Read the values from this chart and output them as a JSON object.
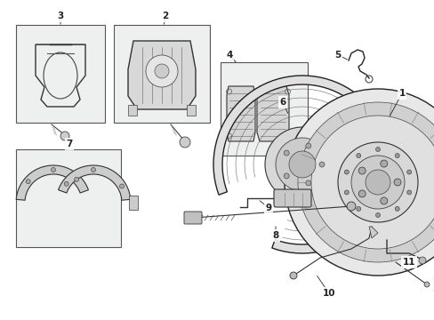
{
  "bg": "#ffffff",
  "lc": "#222222",
  "box_bg": "#eef0f0",
  "fig_w": 4.89,
  "fig_h": 3.6,
  "dpi": 100
}
